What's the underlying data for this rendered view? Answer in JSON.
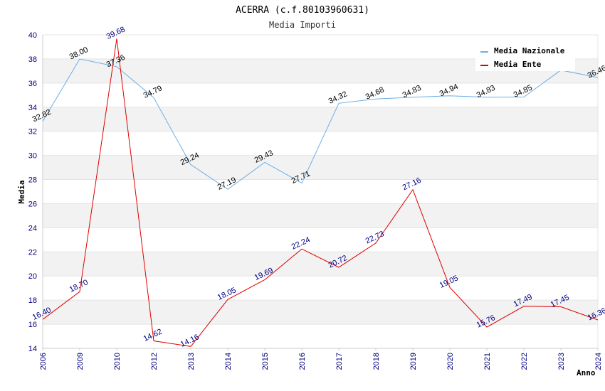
{
  "chart_data": {
    "type": "line",
    "title": "ACERRA (c.f.80103960631)",
    "subtitle": "Media Importi",
    "xlabel": "Anno",
    "ylabel": "Media",
    "x": [
      "2006",
      "2009",
      "2010",
      "2012",
      "2013",
      "2014",
      "2015",
      "2016",
      "2017",
      "2018",
      "2019",
      "2020",
      "2021",
      "2022",
      "2023",
      "2024"
    ],
    "ylim": [
      14,
      40
    ],
    "yticks": [
      "14",
      "16",
      "18",
      "20",
      "22",
      "24",
      "26",
      "28",
      "30",
      "32",
      "34",
      "36",
      "38",
      "40"
    ],
    "grid": "horizontal alternating bands",
    "legend_position": "top-right",
    "series": [
      {
        "name": "Media Nazionale",
        "color": "#6aaee8",
        "label_color": "#000000",
        "values": [
          32.82,
          38.0,
          37.36,
          34.79,
          29.24,
          27.19,
          29.43,
          27.71,
          34.32,
          34.68,
          34.83,
          34.94,
          34.83,
          34.85,
          37.07,
          36.46
        ],
        "labels": [
          "32.82",
          "38.00",
          "37.36",
          "34.79",
          "29.24",
          "27.19",
          "29.43",
          "27.71",
          "34.32",
          "34.68",
          "34.83",
          "34.94",
          "34.83",
          "34.85",
          "",
          "36.46"
        ]
      },
      {
        "name": "Media Ente",
        "color": "#e00000",
        "label_color": "#000080",
        "values": [
          16.4,
          18.7,
          39.68,
          14.62,
          14.16,
          18.05,
          19.69,
          22.24,
          20.72,
          22.73,
          27.16,
          19.05,
          15.76,
          17.49,
          17.45,
          16.36
        ],
        "labels": [
          "16.40",
          "18.70",
          "39.68",
          "14.62",
          "14.16",
          "18.05",
          "19.69",
          "22.24",
          "20.72",
          "22.73",
          "27.16",
          "19.05",
          "15.76",
          "17.49",
          "17.45",
          "16.36"
        ]
      }
    ]
  }
}
